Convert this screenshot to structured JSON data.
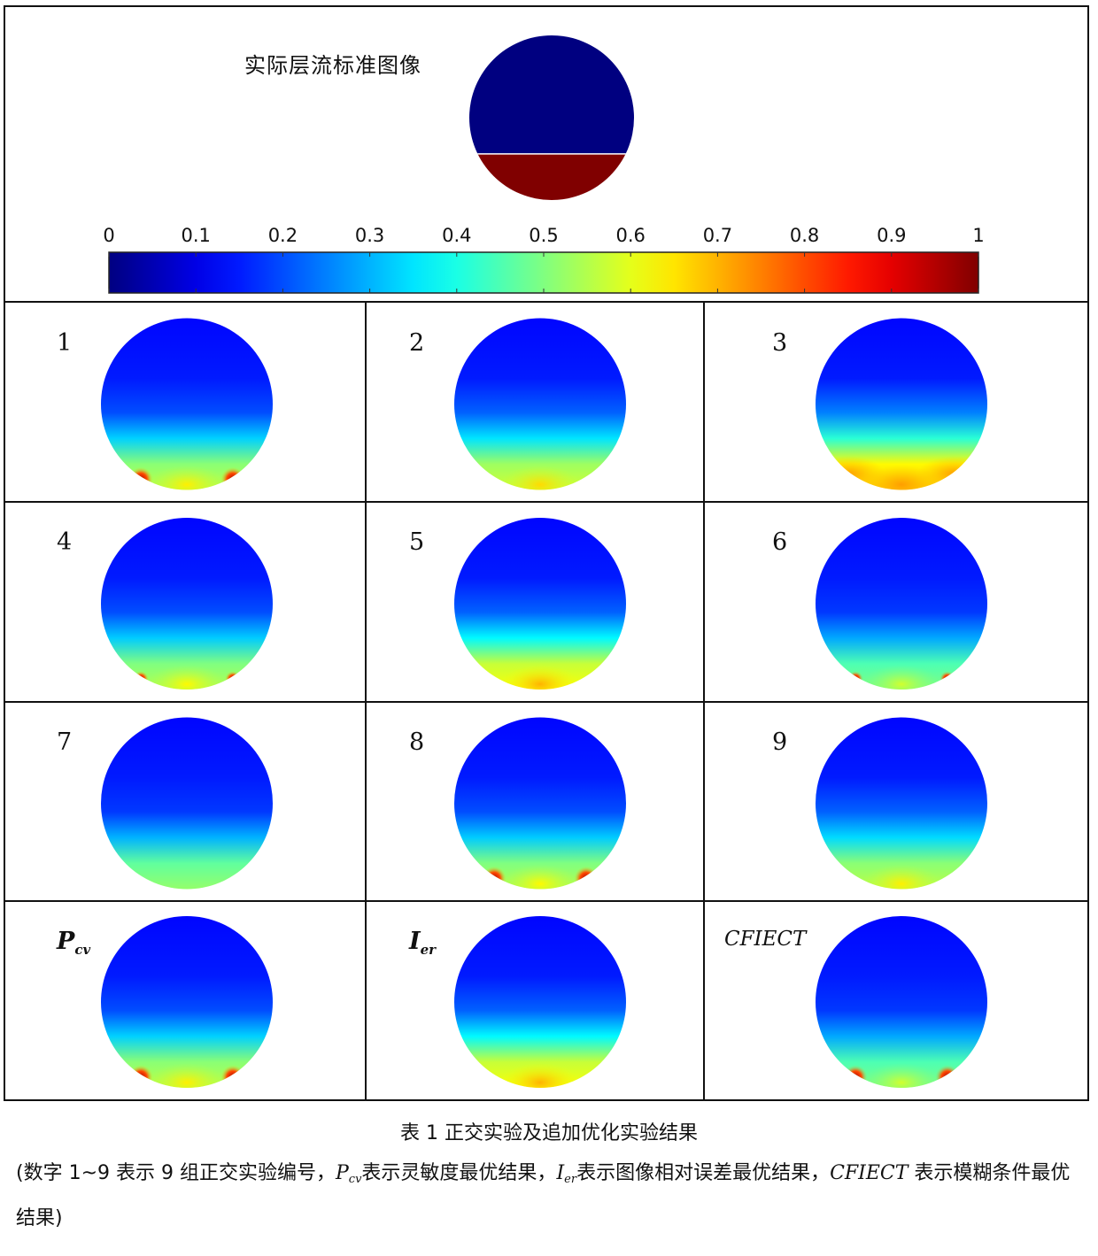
{
  "reference": {
    "label": "实际层流标准图像",
    "upper_value": 0,
    "lower_value": 1,
    "interface_fraction_from_top": 0.72
  },
  "colorbar": {
    "colormap": "jet",
    "ticks": [
      "0",
      "0.1",
      "0.2",
      "0.3",
      "0.4",
      "0.5",
      "0.6",
      "0.7",
      "0.8",
      "0.9",
      "1"
    ],
    "range": [
      0,
      1
    ]
  },
  "panels": [
    {
      "label": "1",
      "bottom_level": 0.56,
      "mid_level": 0.2,
      "hotspots": "two-red"
    },
    {
      "label": "2",
      "bottom_level": 0.58,
      "mid_level": 0.22,
      "hotspots": "faint"
    },
    {
      "label": "3",
      "bottom_level": 0.68,
      "mid_level": 0.25,
      "hotspots": "yellow-band"
    },
    {
      "label": "4",
      "bottom_level": 0.55,
      "mid_level": 0.2,
      "hotspots": "two-red-small"
    },
    {
      "label": "5",
      "bottom_level": 0.62,
      "mid_level": 0.22,
      "hotspots": "faint"
    },
    {
      "label": "6",
      "bottom_level": 0.5,
      "mid_level": 0.18,
      "hotspots": "two-red-small"
    },
    {
      "label": "7",
      "bottom_level": 0.52,
      "mid_level": 0.18,
      "hotspots": "none"
    },
    {
      "label": "8",
      "bottom_level": 0.55,
      "mid_level": 0.2,
      "hotspots": "two-red"
    },
    {
      "label": "9",
      "bottom_level": 0.56,
      "mid_level": 0.22,
      "hotspots": "faint"
    },
    {
      "label_main": "P",
      "label_sub": "cv",
      "italic": true,
      "bottom_level": 0.56,
      "mid_level": 0.2,
      "hotspots": "two-red"
    },
    {
      "label_main": "I",
      "label_sub": "er",
      "italic": true,
      "bottom_level": 0.62,
      "mid_level": 0.22,
      "hotspots": "faint"
    },
    {
      "label_main": "CFIECT",
      "label_sub": "",
      "italic": true,
      "bottom_level": 0.5,
      "mid_level": 0.18,
      "hotspots": "two-red"
    }
  ],
  "caption": {
    "title": "表 1 正交实验及追加优化实验结果",
    "note_parts": [
      "(数字 1~9 表示 9 组正交实验编号，",
      "P",
      "cv",
      "表示灵敏度最优结果，",
      "I",
      "er",
      "表示图像相对误差最优结果，",
      "CFIECT",
      " 表示模糊条件最优结果)"
    ]
  }
}
